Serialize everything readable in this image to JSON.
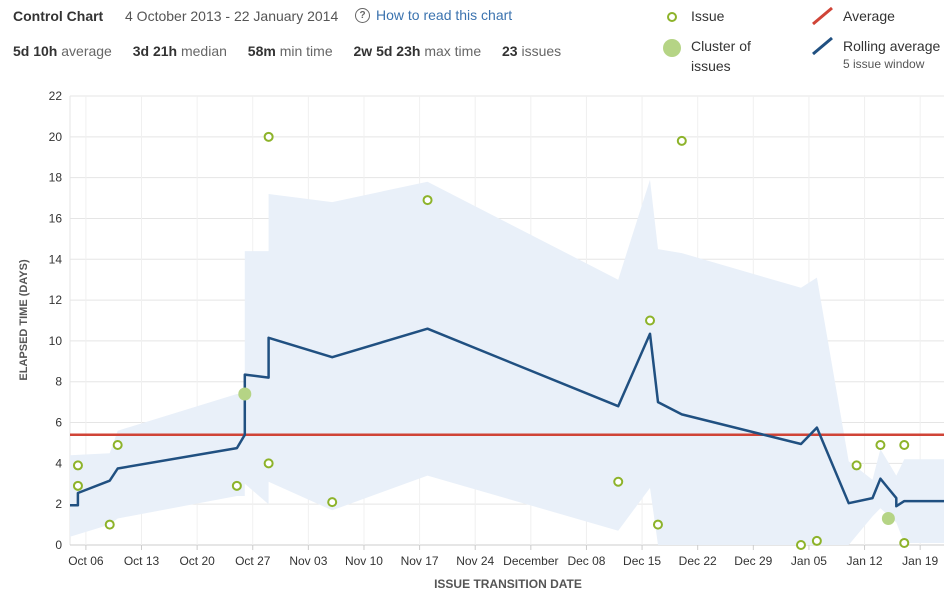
{
  "header": {
    "title": "Control Chart",
    "range": "4 October 2013 - 22 January 2014",
    "help_link": "How to read this chart"
  },
  "stats": [
    {
      "value": "5d 10h",
      "label": "average"
    },
    {
      "value": "3d 21h",
      "label": "median"
    },
    {
      "value": "58m",
      "label": "min time"
    },
    {
      "value": "2w 5d 23h",
      "label": "max time"
    },
    {
      "value": "23",
      "label": "issues"
    }
  ],
  "legend": {
    "issue": "Issue",
    "cluster_line1": "Cluster of",
    "cluster_line2": "issues",
    "average": "Average",
    "rolling": "Rolling average",
    "rolling_sub": "5 issue window"
  },
  "colors": {
    "issue": "#8db32a",
    "cluster": "#b5d485",
    "average": "#d04437",
    "rolling": "#205081",
    "band": "#e9f0f9",
    "grid": "#e5e5e5"
  },
  "chart_data": {
    "type": "scatter",
    "title": "Control Chart",
    "xlabel": "ISSUE TRANSITION DATE",
    "ylabel": "ELAPSED TIME (DAYS)",
    "ylim": [
      0,
      22
    ],
    "yticks": [
      0,
      2,
      4,
      6,
      8,
      10,
      12,
      14,
      16,
      18,
      20,
      22
    ],
    "xlim": [
      "2013-10-04",
      "2014-01-22"
    ],
    "xticks": [
      {
        "date": "2013-10-06",
        "label": "Oct 06"
      },
      {
        "date": "2013-10-13",
        "label": "Oct 13"
      },
      {
        "date": "2013-10-20",
        "label": "Oct 20"
      },
      {
        "date": "2013-10-27",
        "label": "Oct 27"
      },
      {
        "date": "2013-11-03",
        "label": "Nov 03"
      },
      {
        "date": "2013-11-10",
        "label": "Nov 10"
      },
      {
        "date": "2013-11-17",
        "label": "Nov 17"
      },
      {
        "date": "2013-11-24",
        "label": "Nov 24"
      },
      {
        "date": "2013-12-01",
        "label": "December"
      },
      {
        "date": "2013-12-08",
        "label": "Dec 08"
      },
      {
        "date": "2013-12-15",
        "label": "Dec 15"
      },
      {
        "date": "2013-12-22",
        "label": "Dec 22"
      },
      {
        "date": "2013-12-29",
        "label": "Dec 29"
      },
      {
        "date": "2014-01-05",
        "label": "Jan 05"
      },
      {
        "date": "2014-01-12",
        "label": "Jan 12"
      },
      {
        "date": "2014-01-19",
        "label": "Jan 19"
      }
    ],
    "average": 5.4,
    "issues": [
      {
        "date": "2013-10-05",
        "days": 3.9
      },
      {
        "date": "2013-10-05",
        "days": 2.9
      },
      {
        "date": "2013-10-09",
        "days": 1.0
      },
      {
        "date": "2013-10-10",
        "days": 4.9
      },
      {
        "date": "2013-10-25",
        "days": 2.9
      },
      {
        "date": "2013-10-29",
        "days": 20.0
      },
      {
        "date": "2013-10-29",
        "days": 4.0
      },
      {
        "date": "2013-11-06",
        "days": 2.1
      },
      {
        "date": "2013-11-18",
        "days": 16.9
      },
      {
        "date": "2013-12-12",
        "days": 3.1
      },
      {
        "date": "2013-12-16",
        "days": 11.0
      },
      {
        "date": "2013-12-17",
        "days": 1.0
      },
      {
        "date": "2013-12-20",
        "days": 19.8
      },
      {
        "date": "2014-01-04",
        "days": 0.0
      },
      {
        "date": "2014-01-06",
        "days": 0.2
      },
      {
        "date": "2014-01-11",
        "days": 3.9
      },
      {
        "date": "2014-01-14",
        "days": 4.9
      },
      {
        "date": "2014-01-17",
        "days": 4.9
      },
      {
        "date": "2014-01-17",
        "days": 0.1
      }
    ],
    "clusters": [
      {
        "date": "2013-10-26",
        "days": 7.4
      },
      {
        "date": "2014-01-15",
        "days": 1.3
      }
    ],
    "rolling_average": [
      {
        "date": "2013-10-04",
        "days": 1.95
      },
      {
        "date": "2013-10-05",
        "days": 1.95
      },
      {
        "date": "2013-10-05",
        "days": 2.55
      },
      {
        "date": "2013-10-09",
        "days": 3.15
      },
      {
        "date": "2013-10-10",
        "days": 3.75
      },
      {
        "date": "2013-10-25",
        "days": 4.75
      },
      {
        "date": "2013-10-26",
        "days": 5.4
      },
      {
        "date": "2013-10-26",
        "days": 8.35
      },
      {
        "date": "2013-10-29",
        "days": 8.2
      },
      {
        "date": "2013-10-29",
        "days": 10.15
      },
      {
        "date": "2013-11-06",
        "days": 9.2
      },
      {
        "date": "2013-11-18",
        "days": 10.6
      },
      {
        "date": "2013-12-12",
        "days": 6.8
      },
      {
        "date": "2013-12-16",
        "days": 10.35
      },
      {
        "date": "2013-12-17",
        "days": 7.0
      },
      {
        "date": "2013-12-20",
        "days": 6.4
      },
      {
        "date": "2014-01-04",
        "days": 4.95
      },
      {
        "date": "2014-01-06",
        "days": 5.75
      },
      {
        "date": "2014-01-10",
        "days": 2.05
      },
      {
        "date": "2014-01-13",
        "days": 2.3
      },
      {
        "date": "2014-01-14",
        "days": 3.25
      },
      {
        "date": "2014-01-16",
        "days": 2.3
      },
      {
        "date": "2014-01-16",
        "days": 1.9
      },
      {
        "date": "2014-01-17",
        "days": 2.15
      },
      {
        "date": "2014-01-22",
        "days": 2.15
      }
    ],
    "deviation_band": [
      {
        "date": "2013-10-04",
        "upper": 4.4,
        "lower": 0.4
      },
      {
        "date": "2013-10-09",
        "upper": 4.5,
        "lower": 1.0
      },
      {
        "date": "2013-10-10",
        "upper": 5.6,
        "lower": 1.3
      },
      {
        "date": "2013-10-25",
        "upper": 7.4,
        "lower": 2.4
      },
      {
        "date": "2013-10-26",
        "upper": 7.4,
        "lower": 2.4
      },
      {
        "date": "2013-10-26",
        "upper": 14.4,
        "lower": 3.0
      },
      {
        "date": "2013-10-29",
        "upper": 14.4,
        "lower": 2.0
      },
      {
        "date": "2013-10-29",
        "upper": 17.2,
        "lower": 3.1
      },
      {
        "date": "2013-11-06",
        "upper": 16.8,
        "lower": 1.7
      },
      {
        "date": "2013-11-18",
        "upper": 17.8,
        "lower": 3.4
      },
      {
        "date": "2013-12-12",
        "upper": 13.0,
        "lower": 0.7
      },
      {
        "date": "2013-12-16",
        "upper": 17.9,
        "lower": 2.8
      },
      {
        "date": "2013-12-17",
        "upper": 14.5,
        "lower": 0.0
      },
      {
        "date": "2013-12-20",
        "upper": 14.3,
        "lower": 0.0
      },
      {
        "date": "2014-01-04",
        "upper": 12.6,
        "lower": 0.0
      },
      {
        "date": "2014-01-06",
        "upper": 13.1,
        "lower": 0.0
      },
      {
        "date": "2014-01-10",
        "upper": 4.1,
        "lower": 0.0
      },
      {
        "date": "2014-01-13",
        "upper": 3.2,
        "lower": 1.4
      },
      {
        "date": "2014-01-14",
        "upper": 4.7,
        "lower": 1.8
      },
      {
        "date": "2014-01-16",
        "upper": 3.4,
        "lower": 1.1
      },
      {
        "date": "2014-01-17",
        "upper": 4.2,
        "lower": 0.1
      },
      {
        "date": "2014-01-22",
        "upper": 4.2,
        "lower": 0.1
      }
    ]
  }
}
